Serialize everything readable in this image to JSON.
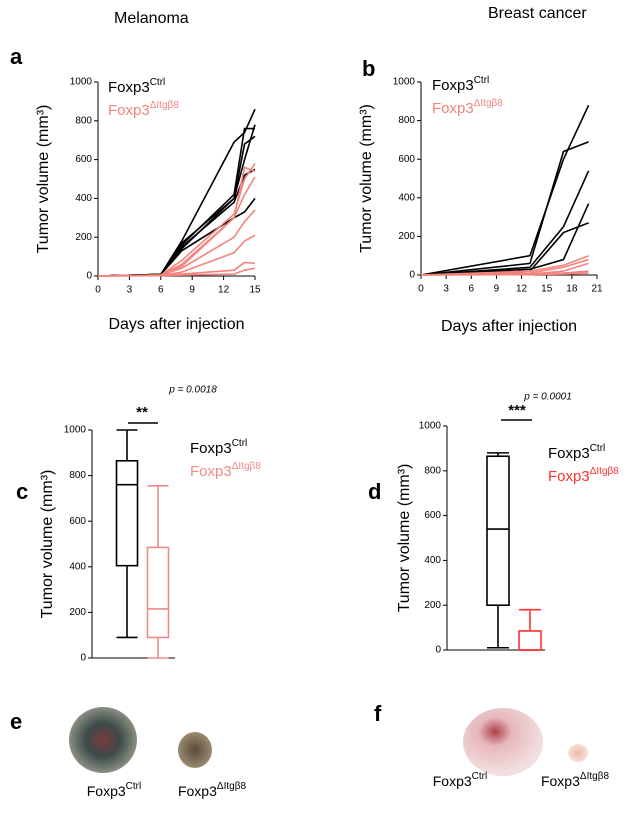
{
  "chart_data": [
    {
      "type": "line",
      "label": "a",
      "column_title": "Melanoma",
      "x_label": "Days after injection",
      "y_label": "Tumor volume (mm³)",
      "x": [
        0,
        6,
        8,
        13,
        14,
        15
      ],
      "xlim": [
        0,
        15
      ],
      "xticks": [
        0,
        3,
        6,
        9,
        12,
        15
      ],
      "ylim": [
        0,
        1000
      ],
      "yticks": [
        0,
        200,
        400,
        600,
        800,
        1000
      ],
      "series": [
        {
          "name": "Foxp3",
          "name_sup": "Ctrl",
          "color": "#000000",
          "lines": [
            [
              0,
              8,
              180,
              690,
              740,
              860
            ],
            [
              0,
              8,
              160,
              420,
              760,
              760
            ],
            [
              0,
              8,
              170,
              400,
              600,
              780
            ],
            [
              0,
              8,
              150,
              380,
              520,
              550
            ],
            [
              0,
              8,
              130,
              300,
              330,
              400
            ],
            [
              0,
              8,
              140,
              400,
              680,
              720
            ]
          ]
        },
        {
          "name": "Foxp3",
          "name_sup": "ΔItgβ8",
          "color": "#f4837d",
          "lines": [
            [
              0,
              5,
              80,
              320,
              500,
              580
            ],
            [
              0,
              5,
              60,
              300,
              420,
              510
            ],
            [
              0,
              5,
              50,
              300,
              560,
              540
            ],
            [
              0,
              5,
              40,
              200,
              280,
              340
            ],
            [
              0,
              3,
              20,
              120,
              180,
              210
            ],
            [
              0,
              2,
              10,
              30,
              70,
              65
            ],
            [
              0,
              2,
              5,
              10,
              30,
              40
            ]
          ]
        }
      ]
    },
    {
      "type": "line",
      "label": "b",
      "column_title": "Breast cancer",
      "x_label": "Days after injection",
      "y_label": "Tumor volume (mm³)",
      "x": [
        0,
        13,
        17,
        20
      ],
      "xlim": [
        0,
        21
      ],
      "xticks": [
        0,
        3,
        6,
        9,
        12,
        15,
        18,
        21
      ],
      "ylim": [
        0,
        1000
      ],
      "yticks": [
        0,
        200,
        400,
        600,
        800,
        1000
      ],
      "series": [
        {
          "name": "Foxp3",
          "name_sup": "Ctrl",
          "color": "#000000",
          "lines": [
            [
              0,
              100,
              600,
              880
            ],
            [
              0,
              60,
              640,
              690
            ],
            [
              0,
              40,
              250,
              540
            ],
            [
              0,
              30,
              80,
              370
            ],
            [
              0,
              20,
              220,
              270
            ]
          ]
        },
        {
          "name": "Foxp3",
          "name_sup": "ΔItgβ8",
          "color": "#f4837d",
          "lines": [
            [
              0,
              20,
              50,
              100
            ],
            [
              0,
              10,
              40,
              80
            ],
            [
              0,
              5,
              20,
              60
            ],
            [
              0,
              3,
              10,
              20
            ],
            [
              0,
              2,
              5,
              10
            ]
          ]
        }
      ]
    },
    {
      "type": "box",
      "label": "c",
      "y_label": "Tumor volume (mm³)",
      "ylim": [
        0,
        1000
      ],
      "yticks": [
        0,
        200,
        400,
        600,
        800,
        1000
      ],
      "annotation": "p = 0.0018",
      "significance": "**",
      "series": [
        {
          "name": "Foxp3",
          "name_sup": "Ctrl",
          "color": "#000000",
          "min": 90,
          "q1": 405,
          "median": 760,
          "q3": 865,
          "max": 1000
        },
        {
          "name": "Foxp3",
          "name_sup": "ΔItgβ8",
          "color": "#f08a8a",
          "min": 0,
          "q1": 90,
          "median": 215,
          "q3": 485,
          "max": 755
        }
      ]
    },
    {
      "type": "box",
      "label": "d",
      "y_label": "Tumor volume (mm³)",
      "ylim": [
        0,
        1000
      ],
      "yticks": [
        0,
        200,
        400,
        600,
        800,
        1000
      ],
      "annotation": "p = 0.0001",
      "significance": "***",
      "series": [
        {
          "name": "Foxp3",
          "name_sup": "Ctrl",
          "color": "#000000",
          "min": 10,
          "q1": 200,
          "median": 540,
          "q3": 865,
          "max": 880
        },
        {
          "name": "Foxp3",
          "name_sup": "ΔItgβ8",
          "color": "#ff3030",
          "legend_color": "#ff3030",
          "min": 0,
          "q1": 0,
          "median": 0,
          "q3": 85,
          "max": 180
        }
      ]
    }
  ],
  "images": [
    {
      "label": "e",
      "captions": [
        {
          "name": "Foxp3",
          "name_sup": "Ctrl"
        },
        {
          "name": "Foxp3",
          "name_sup": "ΔItgβ8"
        }
      ]
    },
    {
      "label": "f",
      "captions": [
        {
          "name": "Foxp3",
          "name_sup": "Ctrl"
        },
        {
          "name": "Foxp3",
          "name_sup": "ΔItgβ8"
        }
      ]
    }
  ]
}
